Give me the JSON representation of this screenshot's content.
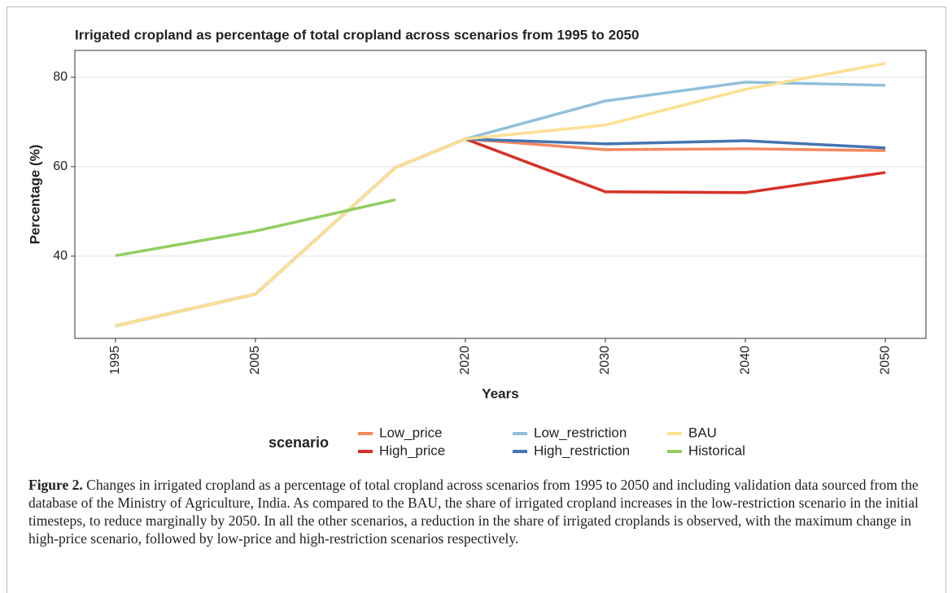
{
  "chart_data": {
    "type": "line",
    "title": "Irrigated cropland as percentage of total cropland across scenarios from 1995 to 2050",
    "x_label": "Years",
    "y_label": "Percentage (%)",
    "x": [
      1995,
      2005,
      2015,
      2020,
      2030,
      2040,
      2050
    ],
    "xlim": [
      1992.1,
      2052.9
    ],
    "xticks": [
      1995,
      2005,
      2020,
      2030,
      2040,
      2050
    ],
    "ylim": [
      21.6,
      86
    ],
    "yticks": [
      40,
      60,
      80
    ],
    "grid": true,
    "legend_title": "scenario",
    "series": [
      {
        "name": "Low_price",
        "color": "#f4895f",
        "values": [
          24.4,
          31.5,
          59.8,
          66.2,
          63.8,
          64.0,
          63.6
        ]
      },
      {
        "name": "High_price",
        "color": "#d73027",
        "values": [
          24.4,
          31.5,
          59.8,
          66.2,
          54.4,
          54.2,
          58.7
        ]
      },
      {
        "name": "Low_restriction",
        "color": "#91bfdb",
        "values": [
          24.4,
          31.5,
          59.8,
          66.2,
          74.7,
          78.9,
          78.2
        ]
      },
      {
        "name": "High_restriction",
        "color": "#4575b4",
        "values": [
          24.4,
          31.5,
          59.8,
          66.2,
          65.1,
          65.8,
          64.2
        ]
      },
      {
        "name": "BAU",
        "color": "#fee090",
        "values": [
          24.4,
          31.5,
          59.8,
          66.2,
          69.3,
          77.3,
          83.1
        ]
      },
      {
        "name": "Historical",
        "color": "#91cf60",
        "values": [
          40.1,
          45.6,
          52.6,
          null,
          null,
          null,
          null
        ]
      }
    ]
  },
  "caption": {
    "label": "Figure 2.",
    "text": "Changes in irrigated cropland as a percentage of total cropland across scenarios from 1995 to 2050 and including validation data sourced from the database of the Ministry of Agriculture, India. As compared to the BAU, the share of irrigated cropland increases in the low-restriction scenario in the initial timesteps, to reduce marginally by 2050. In all the other scenarios, a reduction in the share of irrigated croplands is observed, with the maximum change in high-price scenario, followed by low-price and high-restriction scenarios respectively."
  }
}
